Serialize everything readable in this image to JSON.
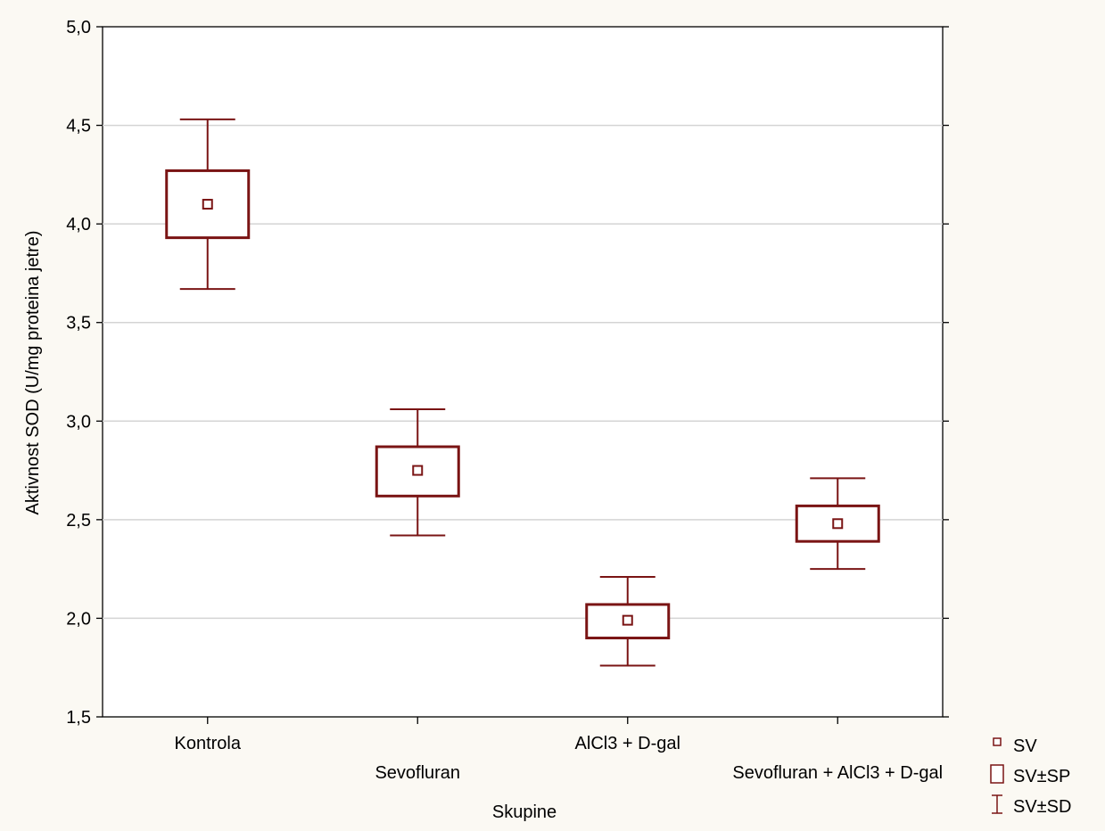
{
  "chart_data": {
    "type": "box",
    "xlabel": "Skupine",
    "ylabel": "Aktivnost SOD (U/mg proteina jetre)",
    "ylim": [
      1.5,
      5.0
    ],
    "yticks": [
      "1,5",
      "2,0",
      "2,5",
      "3,0",
      "3,5",
      "4,0",
      "4,5",
      "5,0"
    ],
    "ytick_values": [
      1.5,
      2.0,
      2.5,
      3.0,
      3.5,
      4.0,
      4.5,
      5.0
    ],
    "grid": true,
    "legend_position": "bottom-right",
    "color": "#7a1414",
    "categories": [
      "Kontrola",
      "Sevofluran",
      "AlCl3 + D-gal",
      "Sevofluran + AlCl3 + D-gal"
    ],
    "series": [
      {
        "category": "Kontrola",
        "mean": 4.1,
        "se_low": 3.93,
        "se_high": 4.27,
        "sd_low": 3.67,
        "sd_high": 4.53
      },
      {
        "category": "Sevofluran",
        "mean": 2.75,
        "se_low": 2.62,
        "se_high": 2.87,
        "sd_low": 2.42,
        "sd_high": 3.06
      },
      {
        "category": "AlCl3 + D-gal",
        "mean": 1.99,
        "se_low": 1.9,
        "se_high": 2.07,
        "sd_low": 1.76,
        "sd_high": 2.21
      },
      {
        "category": "Sevofluran + AlCl3 + D-gal",
        "mean": 2.48,
        "se_low": 2.39,
        "se_high": 2.57,
        "sd_low": 2.25,
        "sd_high": 2.71
      }
    ],
    "legend": [
      {
        "symbol": "mean-marker",
        "label": "SV"
      },
      {
        "symbol": "box",
        "label": "SV±SP"
      },
      {
        "symbol": "whisker",
        "label": "SV±SD"
      }
    ]
  }
}
